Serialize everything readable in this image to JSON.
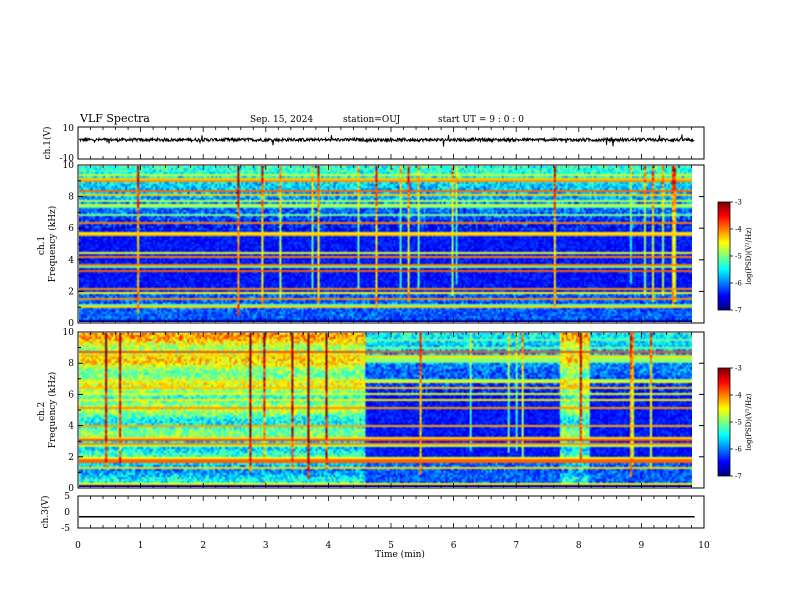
{
  "header": {
    "title": "VLF Spectra",
    "date": "Sep. 15, 2024",
    "station": "station=OUJ",
    "start": "start  UT =   9 : 0  : 0"
  },
  "colors": {
    "background": "#ffffff",
    "axis": "#000000",
    "spectrogram_floor": "#000040"
  },
  "chart_data": [
    {
      "type": "line",
      "id": "ch1-waveform",
      "title": "",
      "xlabel": "",
      "ylabel": "ch.1(V)",
      "ylim": [
        -10,
        10
      ],
      "yticks": [
        "10",
        "-10"
      ],
      "xlim": [
        0,
        10
      ],
      "series": [
        {
          "values_description": "noise-like waveform centred at ~+2 V with amplitude ~±1 V",
          "mean": 2,
          "amplitude": 1
        }
      ]
    },
    {
      "type": "heatmap",
      "id": "ch1-spectrogram",
      "ylabel": "ch.1\nFrequency  (kHz)",
      "ylabel_lines": [
        "ch.1",
        "Frequency  (kHz)"
      ],
      "ylim": [
        0,
        10
      ],
      "yticks": [
        "0",
        "2",
        "4",
        "6",
        "8",
        "10"
      ],
      "xlim": [
        0,
        10
      ],
      "data_end_min": 9.85,
      "colorbar": {
        "label": "log(PSD)(V²/Hz)",
        "min": -7,
        "max": -3,
        "ticks": [
          "-3",
          "-4",
          "-5",
          "-6",
          "-7"
        ]
      },
      "intensity_segments": [
        {
          "from_min": 0,
          "to_min": 9.85,
          "band_high_kHz": 10,
          "level": 0.55
        }
      ]
    },
    {
      "type": "heatmap",
      "id": "ch2-spectrogram",
      "ylabel": "ch.2\nFrequency  (kHz)",
      "ylabel_lines": [
        "ch.2",
        "Frequency  (kHz)"
      ],
      "ylim": [
        0,
        10
      ],
      "yticks": [
        "0",
        "2",
        "4",
        "6",
        "8",
        "10"
      ],
      "xlim": [
        0,
        10
      ],
      "data_end_min": 9.85,
      "colorbar": {
        "label": "log(PSD)(V²/Hz)",
        "min": -7,
        "max": -3,
        "ticks": [
          "-3",
          "-4",
          "-5",
          "-6",
          "-7"
        ]
      },
      "intensity_segments": [
        {
          "from_min": 0,
          "to_min": 4.6,
          "level": 0.85
        },
        {
          "from_min": 4.6,
          "to_min": 7.7,
          "level": 0.45
        },
        {
          "from_min": 7.7,
          "to_min": 8.2,
          "level": 0.85
        },
        {
          "from_min": 8.2,
          "to_min": 9.85,
          "level": 0.45
        }
      ]
    },
    {
      "type": "line",
      "id": "ch3-waveform",
      "ylabel": "ch.3(V)",
      "ylim": [
        -5,
        5
      ],
      "yticks": [
        "5",
        "0",
        "-5"
      ],
      "xlim": [
        0,
        10
      ],
      "xlabel": "Time  (min)",
      "xticks": [
        "0",
        "1",
        "2",
        "3",
        "4",
        "5",
        "6",
        "7",
        "8",
        "9",
        "10"
      ],
      "series": [
        {
          "values_description": "flat line",
          "value": -1.5
        }
      ]
    }
  ]
}
